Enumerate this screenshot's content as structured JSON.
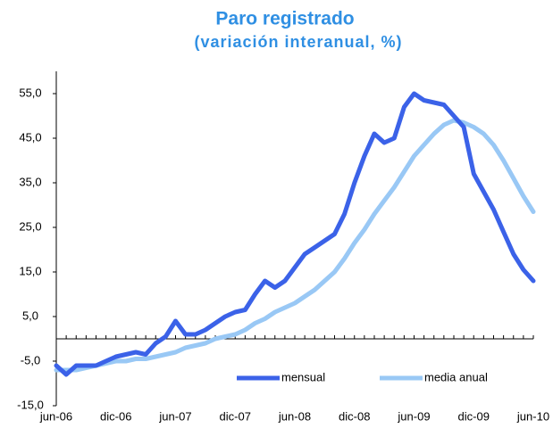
{
  "chart_data": {
    "type": "line",
    "title": "Paro registrado",
    "subtitle": "(variación interanual, %)",
    "categories": [
      "jun-06",
      null,
      null,
      null,
      null,
      null,
      "dic-06",
      null,
      null,
      null,
      null,
      null,
      "jun-07",
      null,
      null,
      null,
      null,
      null,
      "dic-07",
      null,
      null,
      null,
      null,
      null,
      "jun-08",
      null,
      null,
      null,
      null,
      null,
      "dic-08",
      null,
      null,
      null,
      null,
      null,
      "jun-09",
      null,
      null,
      null,
      null,
      null,
      "dic-09",
      null,
      null,
      null,
      null,
      null,
      "jun-10"
    ],
    "series": [
      {
        "name": "mensual",
        "color": "#3b62e8",
        "values": [
          -6,
          -8,
          -6,
          -6,
          -6,
          -5,
          -4,
          -3.5,
          -3,
          -3.5,
          -1,
          0.5,
          4,
          1,
          1,
          2,
          3.5,
          5,
          6,
          6.5,
          10,
          13,
          11.5,
          13,
          16,
          19,
          20.5,
          22,
          23.5,
          28,
          35,
          41,
          46,
          44,
          45,
          52,
          55,
          53.5,
          53,
          52.5,
          50,
          47.5,
          37,
          33,
          29,
          24,
          19,
          15.5,
          13
        ]
      },
      {
        "name": "media anual",
        "color": "#99c8f5",
        "values": [
          -7,
          -7,
          -7,
          -6.5,
          -6,
          -5.5,
          -5,
          -5,
          -4.5,
          -4.5,
          -4,
          -3.5,
          -3,
          -2,
          -1.5,
          -1,
          0,
          0.5,
          1,
          2,
          3.5,
          4.5,
          6,
          7,
          8,
          9.5,
          11,
          13,
          15,
          18,
          21.5,
          24.5,
          28,
          31,
          34,
          37.5,
          41,
          43.5,
          46,
          48,
          49,
          48.5,
          47.5,
          46,
          43.5,
          40,
          36,
          32,
          28.5
        ]
      }
    ],
    "ylim": [
      -15,
      60
    ],
    "yticks": [
      {
        "value": -15,
        "label": "-15,0"
      },
      {
        "value": -5,
        "label": "-5,0"
      },
      {
        "value": 5,
        "label": "5,0"
      },
      {
        "value": 15,
        "label": "15,0"
      },
      {
        "value": 25,
        "label": "25,0"
      },
      {
        "value": 35,
        "label": "35,0"
      },
      {
        "value": 45,
        "label": "45,0"
      },
      {
        "value": 55,
        "label": "55,0"
      }
    ],
    "grid": false,
    "legend": "bottom-right"
  }
}
